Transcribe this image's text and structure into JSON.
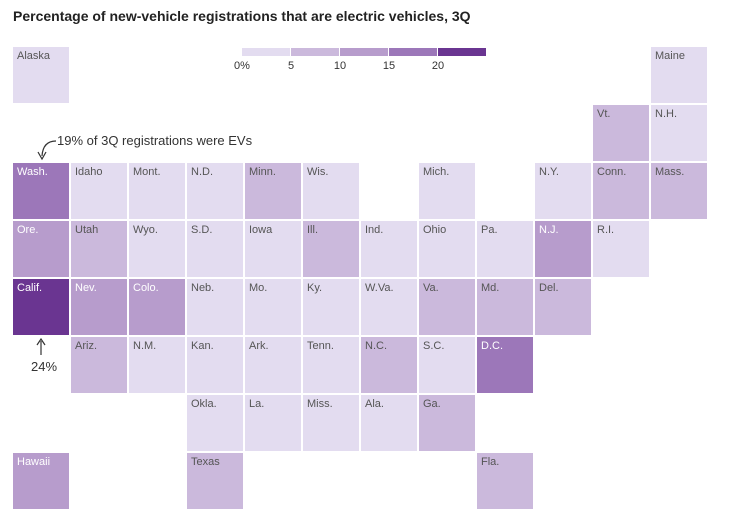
{
  "chart_data": {
    "type": "heatmap",
    "title": "Percentage of new-vehicle registrations that are electric vehicles, 3Q",
    "legend": {
      "ticks": [
        "0%",
        "5",
        "10",
        "15",
        "20"
      ],
      "bins": [
        [
          0,
          5
        ],
        [
          5,
          10
        ],
        [
          10,
          15
        ],
        [
          15,
          20
        ],
        [
          20,
          25
        ]
      ],
      "colors": [
        "#e3dcf0",
        "#cbb9dc",
        "#b79ccc",
        "#9c77b9",
        "#6a3591"
      ]
    },
    "annotations": {
      "wash_note": "19% of 3Q registrations were EVs",
      "calif_note": "24%"
    },
    "states": [
      {
        "name": "Alaska",
        "row": 0,
        "col": 0,
        "bin": 0
      },
      {
        "name": "Maine",
        "row": 0,
        "col": 11,
        "bin": 0
      },
      {
        "name": "Vt.",
        "row": 1,
        "col": 10,
        "bin": 1
      },
      {
        "name": "N.H.",
        "row": 1,
        "col": 11,
        "bin": 0
      },
      {
        "name": "Wash.",
        "row": 2,
        "col": 0,
        "bin": 3
      },
      {
        "name": "Idaho",
        "row": 2,
        "col": 1,
        "bin": 0
      },
      {
        "name": "Mont.",
        "row": 2,
        "col": 2,
        "bin": 0
      },
      {
        "name": "N.D.",
        "row": 2,
        "col": 3,
        "bin": 0
      },
      {
        "name": "Minn.",
        "row": 2,
        "col": 4,
        "bin": 1
      },
      {
        "name": "Wis.",
        "row": 2,
        "col": 5,
        "bin": 0
      },
      {
        "name": "Mich.",
        "row": 2,
        "col": 7,
        "bin": 0
      },
      {
        "name": "N.Y.",
        "row": 2,
        "col": 9,
        "bin": 0
      },
      {
        "name": "Conn.",
        "row": 2,
        "col": 10,
        "bin": 1
      },
      {
        "name": "Mass.",
        "row": 2,
        "col": 11,
        "bin": 1
      },
      {
        "name": "Ore.",
        "row": 3,
        "col": 0,
        "bin": 2
      },
      {
        "name": "Utah",
        "row": 3,
        "col": 1,
        "bin": 1
      },
      {
        "name": "Wyo.",
        "row": 3,
        "col": 2,
        "bin": 0
      },
      {
        "name": "S.D.",
        "row": 3,
        "col": 3,
        "bin": 0
      },
      {
        "name": "Iowa",
        "row": 3,
        "col": 4,
        "bin": 0
      },
      {
        "name": "Ill.",
        "row": 3,
        "col": 5,
        "bin": 1
      },
      {
        "name": "Ind.",
        "row": 3,
        "col": 6,
        "bin": 0
      },
      {
        "name": "Ohio",
        "row": 3,
        "col": 7,
        "bin": 0
      },
      {
        "name": "Pa.",
        "row": 3,
        "col": 8,
        "bin": 0
      },
      {
        "name": "N.J.",
        "row": 3,
        "col": 9,
        "bin": 2
      },
      {
        "name": "R.I.",
        "row": 3,
        "col": 10,
        "bin": 0
      },
      {
        "name": "Calif.",
        "row": 4,
        "col": 0,
        "bin": 4
      },
      {
        "name": "Nev.",
        "row": 4,
        "col": 1,
        "bin": 2
      },
      {
        "name": "Colo.",
        "row": 4,
        "col": 2,
        "bin": 2
      },
      {
        "name": "Neb.",
        "row": 4,
        "col": 3,
        "bin": 0
      },
      {
        "name": "Mo.",
        "row": 4,
        "col": 4,
        "bin": 0
      },
      {
        "name": "Ky.",
        "row": 4,
        "col": 5,
        "bin": 0
      },
      {
        "name": "W.Va.",
        "row": 4,
        "col": 6,
        "bin": 0
      },
      {
        "name": "Va.",
        "row": 4,
        "col": 7,
        "bin": 1
      },
      {
        "name": "Md.",
        "row": 4,
        "col": 8,
        "bin": 1
      },
      {
        "name": "Del.",
        "row": 4,
        "col": 9,
        "bin": 1
      },
      {
        "name": "Ariz.",
        "row": 5,
        "col": 1,
        "bin": 1
      },
      {
        "name": "N.M.",
        "row": 5,
        "col": 2,
        "bin": 0
      },
      {
        "name": "Kan.",
        "row": 5,
        "col": 3,
        "bin": 0
      },
      {
        "name": "Ark.",
        "row": 5,
        "col": 4,
        "bin": 0
      },
      {
        "name": "Tenn.",
        "row": 5,
        "col": 5,
        "bin": 0
      },
      {
        "name": "N.C.",
        "row": 5,
        "col": 6,
        "bin": 1
      },
      {
        "name": "S.C.",
        "row": 5,
        "col": 7,
        "bin": 0
      },
      {
        "name": "D.C.",
        "row": 5,
        "col": 8,
        "bin": 3
      },
      {
        "name": "Okla.",
        "row": 6,
        "col": 3,
        "bin": 0
      },
      {
        "name": "La.",
        "row": 6,
        "col": 4,
        "bin": 0
      },
      {
        "name": "Miss.",
        "row": 6,
        "col": 5,
        "bin": 0
      },
      {
        "name": "Ala.",
        "row": 6,
        "col": 6,
        "bin": 0
      },
      {
        "name": "Ga.",
        "row": 6,
        "col": 7,
        "bin": 1
      },
      {
        "name": "Hawaii",
        "row": 7,
        "col": 0,
        "bin": 2
      },
      {
        "name": "Texas",
        "row": 7,
        "col": 3,
        "bin": 1
      },
      {
        "name": "Fla.",
        "row": 7,
        "col": 8,
        "bin": 1
      }
    ]
  }
}
